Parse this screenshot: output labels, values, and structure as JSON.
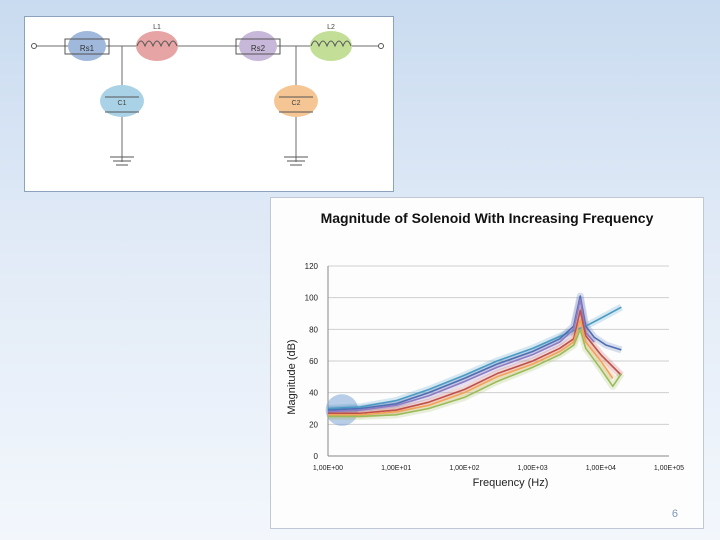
{
  "circuit": {
    "components": [
      {
        "id": "rs1",
        "label": "Rs1",
        "color": "#9fb8dc"
      },
      {
        "id": "l1",
        "label": "L1",
        "color": "#e7a4a4"
      },
      {
        "id": "rs2",
        "label": "Rs2",
        "color": "#c7b7d8"
      },
      {
        "id": "l2",
        "label": "L2",
        "color": "#c3df97"
      },
      {
        "id": "c1",
        "label": "C1",
        "color": "#a9d2e6"
      },
      {
        "id": "c2",
        "label": "C2",
        "color": "#f5c593"
      }
    ]
  },
  "chart_data": {
    "type": "line",
    "title": "Magnitude of Solenoid With Increasing Frequency",
    "xlabel": "Frequency (Hz)",
    "ylabel": "Magnitude (dB)",
    "x_scale": "log",
    "xlim": [
      1,
      100000
    ],
    "ylim": [
      0,
      120
    ],
    "x_ticks": [
      1,
      10,
      100,
      1000,
      10000,
      100000
    ],
    "x_tick_labels": [
      "1,00E+00",
      "1,00E+01",
      "1,00E+02",
      "1,00E+03",
      "1,00E+04",
      "1,00E+05"
    ],
    "y_ticks": [
      0,
      20,
      40,
      60,
      80,
      100,
      120
    ],
    "grid": "horizontal",
    "series": [
      {
        "color": "#4a9bc4",
        "x": [
          1,
          3,
          10,
          30,
          100,
          300,
          1000,
          3000,
          6000,
          10000,
          20000
        ],
        "y": [
          30,
          31,
          35,
          42,
          51,
          60,
          68,
          77,
          82,
          87,
          94
        ]
      },
      {
        "color": "#4d6fb3",
        "x": [
          1,
          3,
          10,
          30,
          100,
          300,
          1000,
          2500,
          4000,
          5000,
          6000,
          8000,
          12000,
          20000
        ],
        "y": [
          29,
          30,
          33,
          40,
          49,
          58,
          66,
          74,
          82,
          101,
          82,
          75,
          70,
          67
        ]
      },
      {
        "color": "#8e7cc3",
        "x": [
          1,
          3,
          10,
          30,
          100,
          300,
          1000,
          2500,
          4000,
          5000,
          6000,
          8000
        ],
        "y": [
          28,
          29,
          32,
          38,
          47,
          56,
          64,
          72,
          80,
          99,
          78,
          72
        ]
      },
      {
        "color": "#c0504d",
        "x": [
          1,
          3,
          10,
          30,
          100,
          300,
          1000,
          2500,
          4000,
          5000,
          6000,
          10000,
          20000
        ],
        "y": [
          27,
          27,
          29,
          34,
          42,
          52,
          60,
          68,
          74,
          92,
          76,
          64,
          51
        ]
      },
      {
        "color": "#f2a35a",
        "x": [
          1,
          3,
          10,
          30,
          100,
          300,
          1000,
          2500,
          4000,
          5000,
          6000,
          10000,
          15000
        ],
        "y": [
          26,
          26,
          28,
          32,
          40,
          50,
          58,
          66,
          72,
          86,
          72,
          60,
          49
        ]
      },
      {
        "color": "#9bbb59",
        "x": [
          1,
          3,
          10,
          30,
          100,
          300,
          1000,
          2500,
          4000,
          5000,
          6000,
          10000,
          15000,
          20000
        ],
        "y": [
          25,
          25,
          26,
          30,
          37,
          47,
          56,
          64,
          70,
          80,
          68,
          55,
          44,
          52
        ]
      }
    ],
    "annotations": [
      {
        "kind": "ellipse",
        "color": "#7fa6d6",
        "x_center": 1.6,
        "y_center": 29,
        "x_from": 1,
        "x_to": 3,
        "y_half": 10
      }
    ]
  },
  "page": {
    "number": "6"
  }
}
